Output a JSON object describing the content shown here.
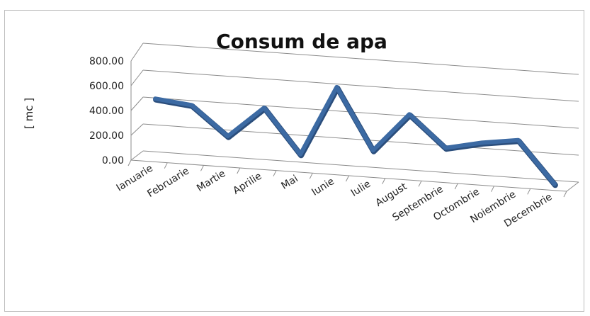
{
  "chart_data": {
    "type": "line",
    "title": "Consum de apa",
    "xlabel": "",
    "ylabel": "[ mc ]",
    "ylim": [
      0,
      800
    ],
    "yticks": [
      "0.00",
      "200.00",
      "400.00",
      "600.00",
      "800.00"
    ],
    "categories": [
      "Ianuarie",
      "Februarie",
      "Martie",
      "Aprilie",
      "Mai",
      "Iunie",
      "Iulie",
      "August",
      "Septembrie",
      "Octombrie",
      "Noiembrie",
      "Decembrie"
    ],
    "series": [
      {
        "values": [
          450,
          420,
          200,
          440,
          100,
          640,
          170,
          470,
          230,
          290,
          330,
          10
        ]
      }
    ],
    "grid": true,
    "legend": "none",
    "line_color": "#3C6AA3"
  }
}
